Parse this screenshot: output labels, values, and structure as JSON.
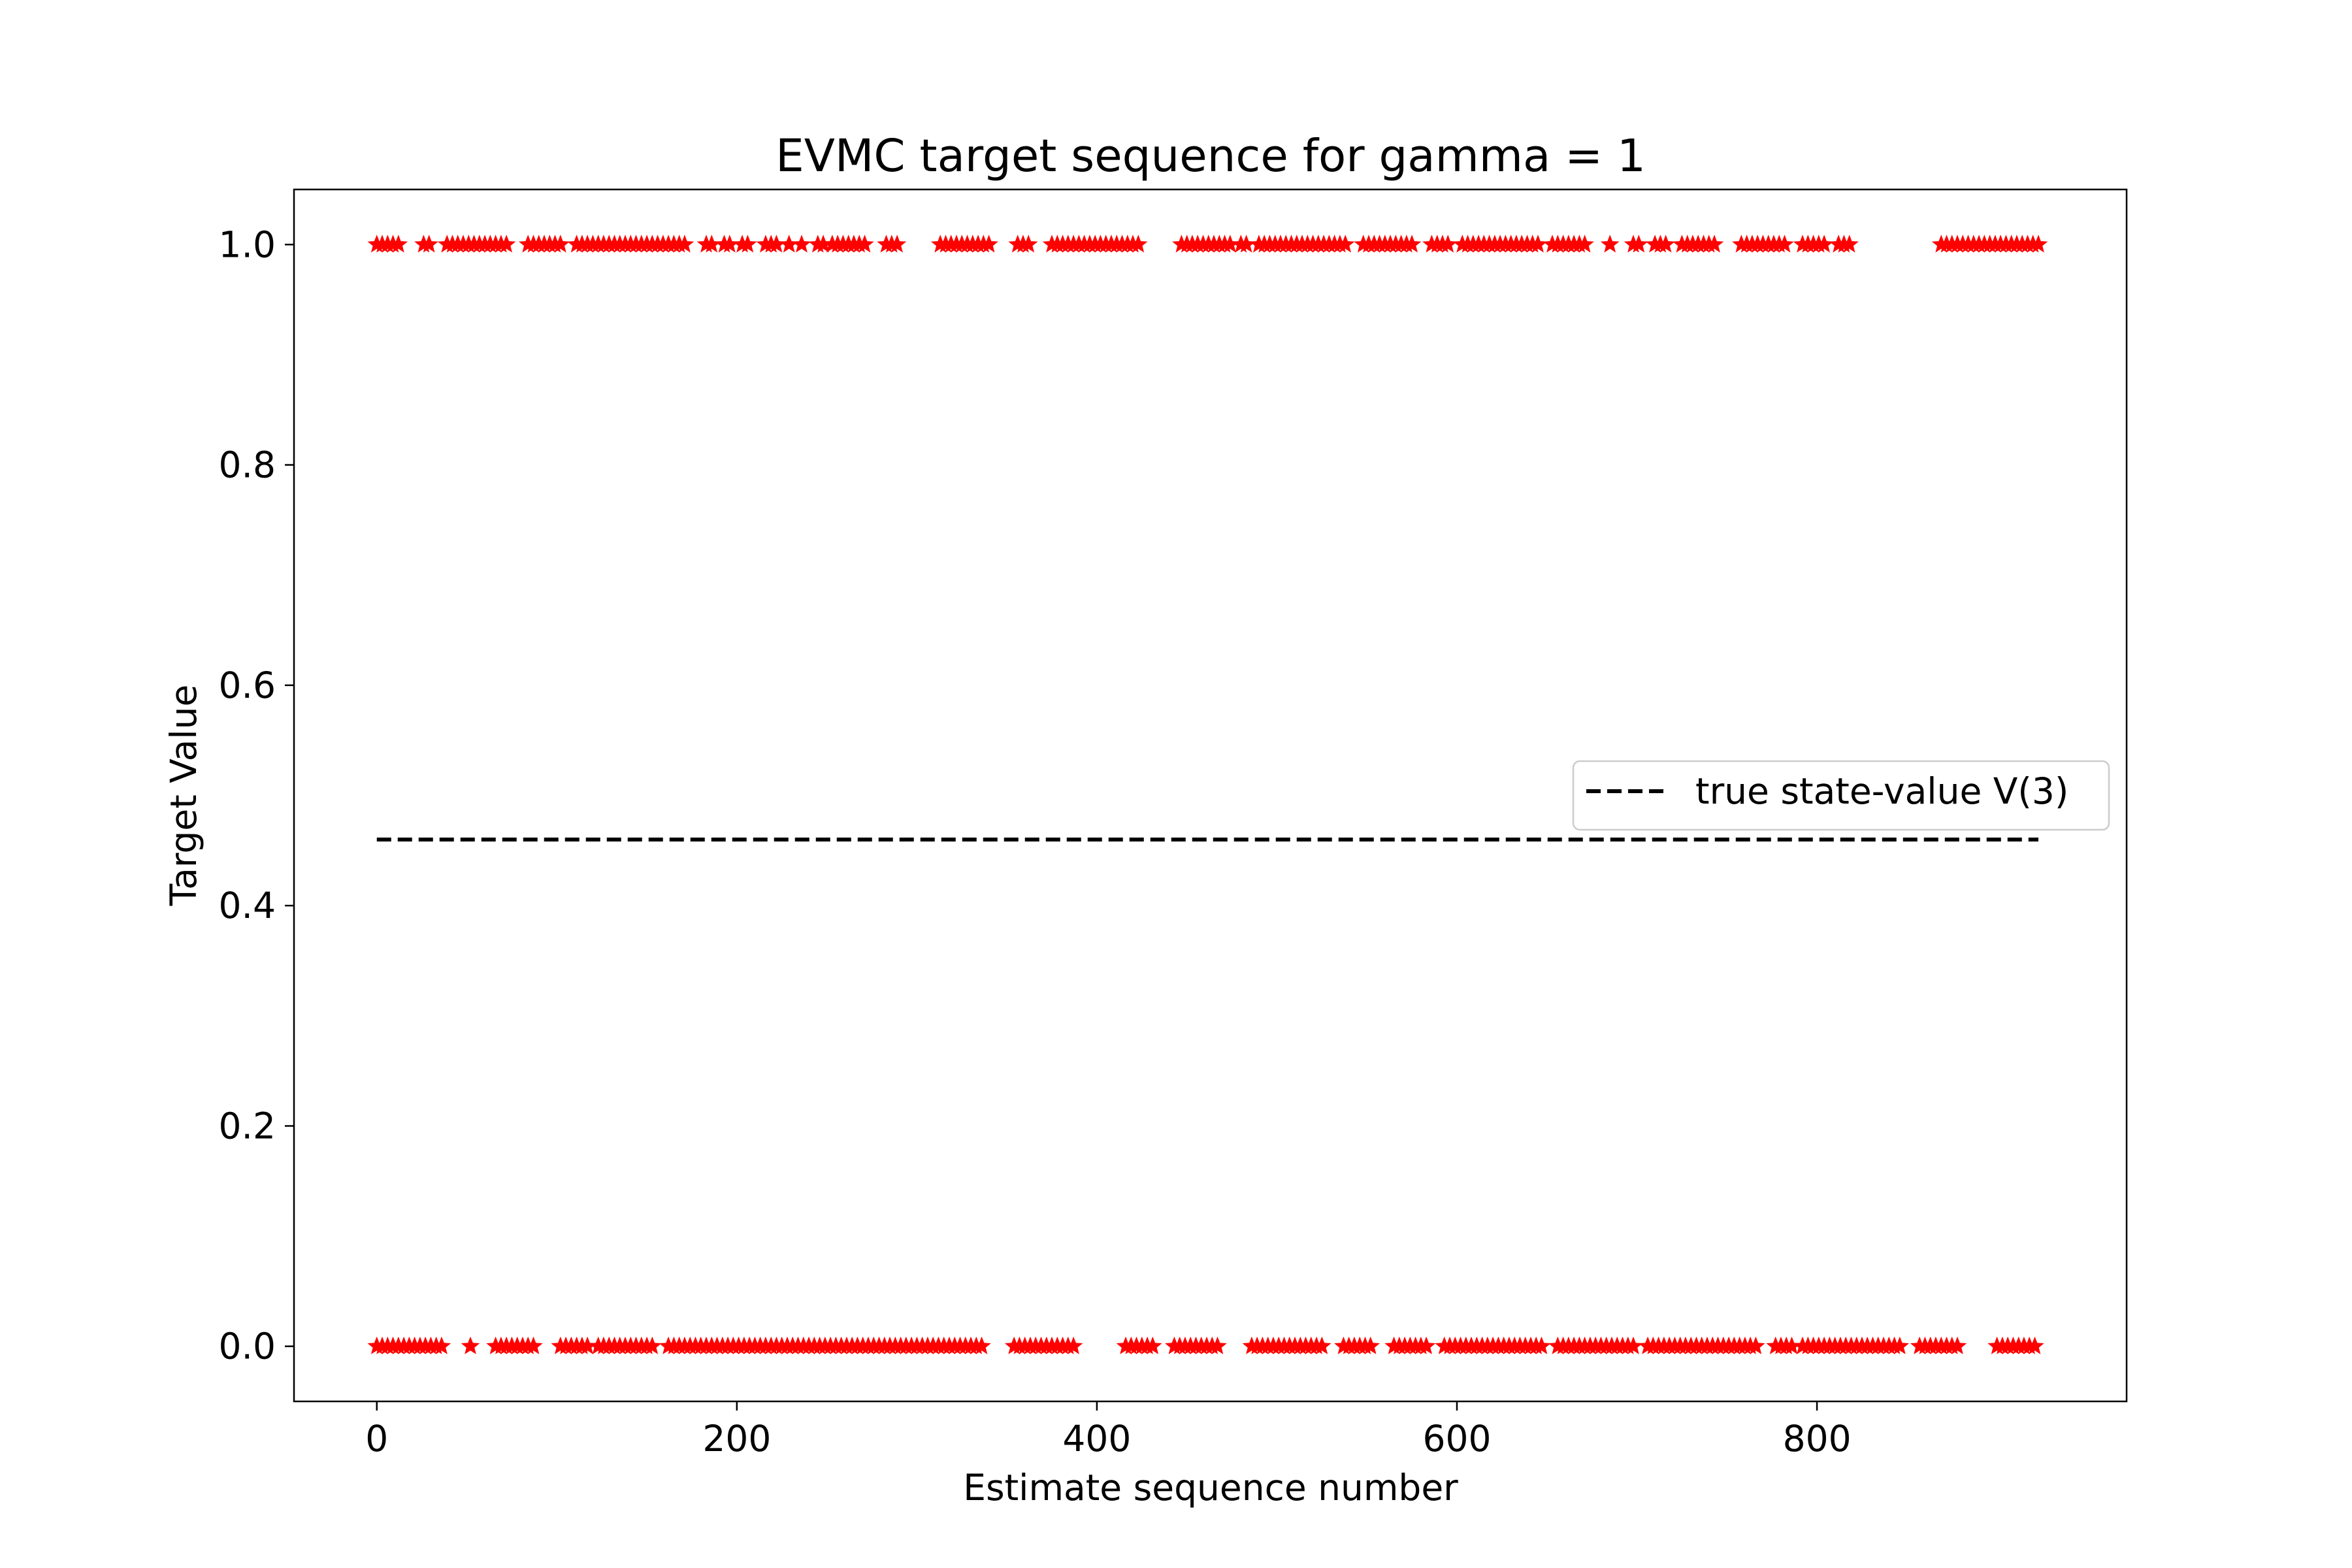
{
  "chart_data": {
    "type": "scatter",
    "title": "EVMC target sequence for gamma = 1",
    "xlabel": "Estimate sequence number",
    "ylabel": "Target Value",
    "xlim": [
      -46,
      972
    ],
    "ylim": [
      -0.05,
      1.05
    ],
    "x_ticks": [
      0,
      200,
      400,
      600,
      800
    ],
    "x_tick_labels": [
      "0",
      "200",
      "400",
      "600",
      "800"
    ],
    "y_ticks": [
      0.0,
      0.2,
      0.4,
      0.6,
      0.8,
      1.0
    ],
    "y_tick_labels": [
      "0.0",
      "0.2",
      "0.4",
      "0.6",
      "0.8",
      "1.0"
    ],
    "grid": false,
    "legend_position": "center-right",
    "colors": {
      "targets": "#ff0000",
      "true_value": "#000000"
    },
    "series": [
      {
        "name": "",
        "kind": "scatter",
        "marker": "star",
        "color": "#ff0000",
        "y": 1.0,
        "x_ranges": [
          [
            0,
            14
          ],
          [
            26,
            31
          ],
          [
            39,
            74
          ],
          [
            84,
            103
          ],
          [
            111,
            173
          ],
          [
            183,
            186
          ],
          [
            193,
            198
          ],
          [
            203,
            206
          ],
          [
            216,
            222
          ],
          [
            229,
            231
          ],
          [
            238,
            236
          ],
          [
            245,
            249
          ],
          [
            253,
            273
          ],
          [
            283,
            290
          ],
          [
            313,
            341
          ],
          [
            356,
            364
          ],
          [
            375,
            425
          ],
          [
            447,
            475
          ],
          [
            480,
            485
          ],
          [
            490,
            540
          ],
          [
            548,
            576
          ],
          [
            586,
            596
          ],
          [
            603,
            645
          ],
          [
            653,
            672
          ],
          [
            687,
            685
          ],
          [
            698,
            703
          ],
          [
            710,
            718
          ],
          [
            725,
            743
          ],
          [
            758,
            783
          ],
          [
            792,
            806
          ],
          [
            812,
            820
          ],
          [
            869,
            923
          ]
        ]
      },
      {
        "name": "",
        "kind": "scatter",
        "marker": "star",
        "color": "#ff0000",
        "y": 0.0,
        "x_ranges": [
          [
            0,
            38
          ],
          [
            52,
            52
          ],
          [
            66,
            87
          ],
          [
            102,
            117
          ],
          [
            123,
            155
          ],
          [
            162,
            337
          ],
          [
            354,
            388
          ],
          [
            416,
            432
          ],
          [
            443,
            467
          ],
          [
            486,
            527
          ],
          [
            537,
            554
          ],
          [
            565,
            583
          ],
          [
            593,
            648
          ],
          [
            656,
            700
          ],
          [
            706,
            768
          ],
          [
            777,
            787
          ],
          [
            792,
            848
          ],
          [
            857,
            878
          ],
          [
            900,
            922
          ]
        ]
      },
      {
        "name": "true state-value V(3)",
        "kind": "line",
        "style": "dashed",
        "color": "#000000",
        "x": [
          0,
          923
        ],
        "y": [
          0.46,
          0.46
        ]
      }
    ]
  }
}
